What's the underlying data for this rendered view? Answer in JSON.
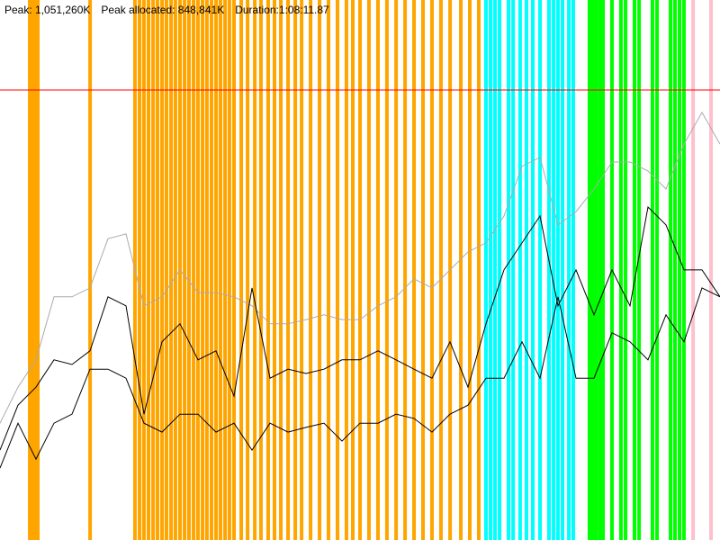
{
  "chart_data": {
    "type": "line",
    "annotations": [
      "Peak: 1,051,260K",
      "Peak allocated: 848,841K",
      "Duration:1:08:11.87"
    ],
    "xlim": [
      0,
      4091.87
    ],
    "ylim": [
      0,
      1261512
    ],
    "peak": 1051260,
    "peak_color": "#ff0000",
    "markers": [
      {
        "color": "#ffa500",
        "x": [
          169,
          184,
          199,
          215,
          512,
          767,
          793,
          818,
          844,
          870,
          895,
          921,
          946,
          972,
          997,
          1023,
          1049,
          1074,
          1100,
          1125,
          1151,
          1176,
          1202,
          1228,
          1253,
          1279,
          1304,
          1330,
          1371,
          1407,
          1448,
          1483,
          1524,
          1560,
          1596,
          1637,
          1678,
          1714,
          1765,
          1816,
          1867,
          1918,
          1969,
          2005,
          2046,
          2097,
          2148,
          2199,
          2251,
          2302,
          2353,
          2404,
          2455,
          2506,
          2558,
          2619,
          2670,
          2721
        ]
      },
      {
        "color": "#00ffff",
        "x": [
          2762,
          2788,
          2813,
          2839,
          2890,
          2916,
          2956,
          2992,
          3028,
          3069,
          3120,
          3146,
          3171,
          3197,
          3233,
          3258
        ]
      },
      {
        "color": "#00ff00",
        "x": [
          3350,
          3366,
          3386,
          3407,
          3427,
          3478,
          3529,
          3555,
          3606,
          3632,
          3708,
          3734,
          3811,
          3836,
          3862,
          3887
        ]
      },
      {
        "color": "#ffc0cb",
        "x": [
          3939,
          4041
        ]
      }
    ],
    "x": [
      0,
      102.3,
      204.6,
      306.9,
      409.2,
      511.5,
      613.8,
      716.1,
      818.4,
      920.7,
      1023,
      1125.3,
      1227.6,
      1329.9,
      1432.2,
      1534.5,
      1636.8,
      1739.1,
      1841.4,
      1943.7,
      2046,
      2148.3,
      2250.6,
      2352.9,
      2455.2,
      2557.5,
      2659.8,
      2762.1,
      2864.4,
      2966.7,
      3069,
      3171.3,
      3273.6,
      3375.9,
      3478.2,
      3580.5,
      3682.8,
      3785.1,
      3887.4,
      3989.7,
      4091.8
    ],
    "series": [
      {
        "color": "#aaaaaa",
        "values": [
          273000,
          357000,
          421000,
          568000,
          568000,
          589000,
          704000,
          715000,
          547000,
          568000,
          631000,
          578000,
          578000,
          568000,
          547000,
          505000,
          505000,
          515000,
          526000,
          515000,
          515000,
          547000,
          568000,
          610000,
          589000,
          631000,
          673000,
          694000,
          757000,
          873000,
          894000,
          736000,
          767000,
          820000,
          883000,
          883000,
          862000,
          820000,
          925000,
          999000,
          925000
        ]
      },
      {
        "color": "#000000",
        "values": [
          210000,
          315000,
          357000,
          421000,
          410000,
          442000,
          568000,
          547000,
          294000,
          463000,
          505000,
          421000,
          442000,
          336000,
          589000,
          378000,
          399000,
          389000,
          399000,
          421000,
          421000,
          442000,
          421000,
          399000,
          378000,
          463000,
          357000,
          505000,
          631000,
          694000,
          757000,
          547000,
          631000,
          526000,
          631000,
          547000,
          778000,
          736000,
          631000,
          631000,
          568000
        ]
      },
      {
        "color": "#000000",
        "values": [
          168000,
          273000,
          189000,
          273000,
          294000,
          399000,
          399000,
          378000,
          273000,
          252000,
          294000,
          294000,
          252000,
          273000,
          210000,
          273000,
          252000,
          263000,
          273000,
          231000,
          273000,
          273000,
          294000,
          284000,
          252000,
          294000,
          315000,
          378000,
          378000,
          463000,
          378000,
          568000,
          378000,
          378000,
          484000,
          463000,
          421000,
          526000,
          463000,
          589000,
          568000
        ]
      }
    ]
  }
}
